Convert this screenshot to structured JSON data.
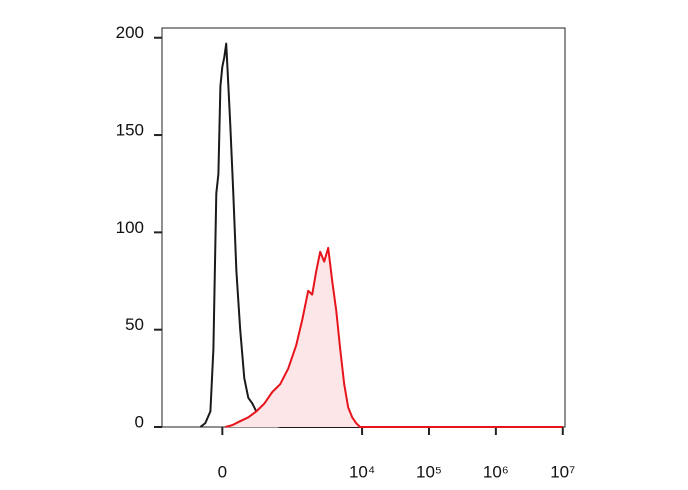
{
  "chart_data": {
    "type": "line",
    "xscale": "biexponential",
    "xlim": [
      -640,
      10800000
    ],
    "xticks": [
      0,
      {
        "value": 10000,
        "label": "10⁴"
      },
      {
        "value": 100000,
        "label": "10⁵"
      },
      {
        "value": 1000000,
        "label": "10⁶"
      },
      {
        "value": 10000000,
        "label": "10⁷"
      }
    ],
    "ylim": [
      0,
      205
    ],
    "yticks": [
      0,
      50,
      100,
      150,
      200
    ],
    "series": [
      {
        "color": "#1a1a1a",
        "x": [
          -135,
          -101,
          -69,
          -51,
          -34,
          -22,
          -11,
          0,
          11,
          22,
          34,
          45,
          63,
          82,
          107,
          135,
          166,
          200,
          237,
          279,
          339,
          408,
          587,
          1185,
          10000000
        ],
        "values": [
          0,
          2,
          8,
          40,
          120,
          130,
          175,
          185,
          190,
          197,
          175,
          155,
          120,
          80,
          50,
          25,
          15,
          12,
          8,
          4,
          2,
          1,
          0,
          0,
          0
        ]
      },
      {
        "color": "#e8141c",
        "fill": "#fde6e8",
        "x": [
          17,
          57,
          107,
          166,
          237,
          326,
          440,
          587,
          779,
          1030,
          1270,
          1563,
          1793,
          2060,
          2362,
          2711,
          3111,
          3570,
          4099,
          4704,
          5398,
          6195,
          7109,
          8153,
          9357,
          13190,
          10000000
        ],
        "values": [
          0,
          1,
          3,
          5,
          8,
          12,
          18,
          22,
          30,
          42,
          55,
          70,
          68,
          80,
          90,
          85,
          92,
          75,
          60,
          40,
          22,
          10,
          5,
          2,
          0,
          0,
          0
        ]
      }
    ]
  }
}
